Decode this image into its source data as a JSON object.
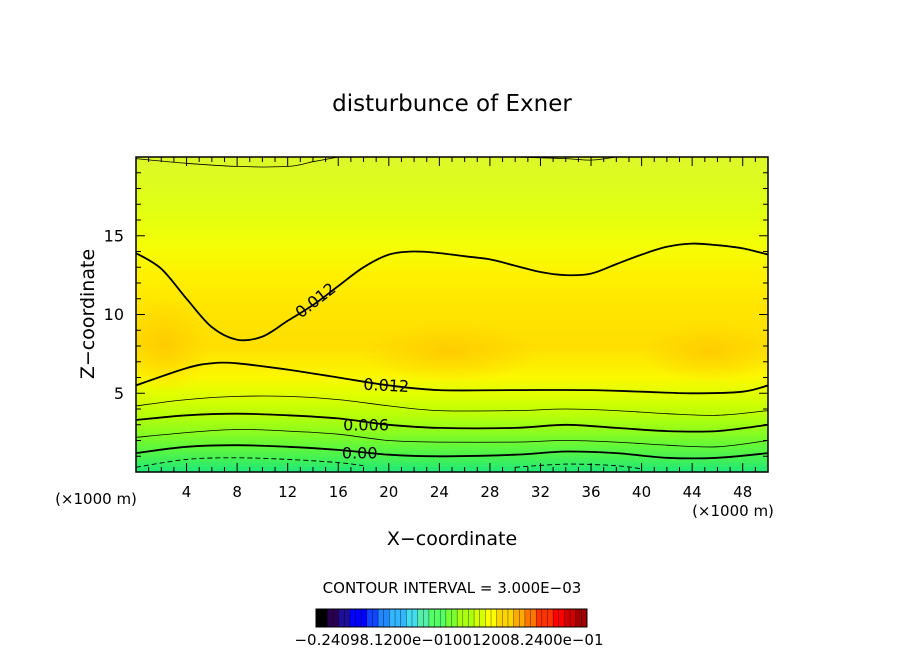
{
  "chart_data": {
    "type": "heatmap",
    "title": "disturbunce of Exner",
    "xlabel": "X−coordinate",
    "ylabel": "Z−coordinate",
    "x_unit": "(×1000 m)",
    "x_unit_right": "(×1000 m)",
    "xlim": [
      0,
      50
    ],
    "ylim": [
      0,
      20
    ],
    "x_ticks": [
      4,
      8,
      12,
      16,
      20,
      24,
      28,
      32,
      36,
      40,
      44,
      48
    ],
    "y_ticks": [
      5,
      10,
      15
    ],
    "contour_interval_text": "CONTOUR INTERVAL = 3.000E−03",
    "contour_labels": [
      {
        "text": "0.012",
        "x": 14.2,
        "y": 10.9,
        "angle": -38
      },
      {
        "text": "0.012",
        "x": 19.8,
        "y": 5.5,
        "angle": 3
      },
      {
        "text": "0.006",
        "x": 18.2,
        "y": 3.0,
        "angle": 0
      },
      {
        "text": "0.00",
        "x": 17.7,
        "y": 1.2,
        "angle": 0
      }
    ],
    "contours": [
      {
        "level": 0.012,
        "style": "thick",
        "points": [
          [
            0,
            13.9
          ],
          [
            2,
            12.9
          ],
          [
            4,
            11.0
          ],
          [
            6,
            9.2
          ],
          [
            8,
            8.4
          ],
          [
            10,
            8.6
          ],
          [
            12,
            9.6
          ],
          [
            14,
            10.6
          ],
          [
            16,
            11.8
          ],
          [
            18,
            13.0
          ],
          [
            20,
            13.8
          ],
          [
            22,
            14.0
          ],
          [
            24,
            13.9
          ],
          [
            26,
            13.7
          ],
          [
            28,
            13.5
          ],
          [
            30,
            13.1
          ],
          [
            32,
            12.7
          ],
          [
            34,
            12.5
          ],
          [
            36,
            12.6
          ],
          [
            38,
            13.2
          ],
          [
            40,
            13.8
          ],
          [
            42,
            14.3
          ],
          [
            44,
            14.5
          ],
          [
            46,
            14.4
          ],
          [
            48,
            14.2
          ],
          [
            50,
            13.8
          ]
        ]
      },
      {
        "level": 0.012,
        "style": "thick",
        "points": [
          [
            0,
            5.5
          ],
          [
            4,
            6.6
          ],
          [
            6,
            6.9
          ],
          [
            8,
            6.9
          ],
          [
            12,
            6.5
          ],
          [
            16,
            6.0
          ],
          [
            20,
            5.5
          ],
          [
            24,
            5.2
          ],
          [
            30,
            5.2
          ],
          [
            36,
            5.2
          ],
          [
            40,
            5.1
          ],
          [
            44,
            5.0
          ],
          [
            48,
            5.1
          ],
          [
            50,
            5.5
          ]
        ]
      },
      {
        "level": 0.009,
        "style": "thin",
        "points": [
          [
            0,
            4.2
          ],
          [
            4,
            4.6
          ],
          [
            8,
            4.8
          ],
          [
            12,
            4.8
          ],
          [
            16,
            4.6
          ],
          [
            20,
            4.2
          ],
          [
            24,
            3.9
          ],
          [
            30,
            3.9
          ],
          [
            34,
            4.0
          ],
          [
            38,
            3.9
          ],
          [
            42,
            3.7
          ],
          [
            46,
            3.6
          ],
          [
            50,
            3.9
          ]
        ]
      },
      {
        "level": 0.006,
        "style": "thick",
        "points": [
          [
            0,
            3.3
          ],
          [
            4,
            3.6
          ],
          [
            8,
            3.7
          ],
          [
            12,
            3.6
          ],
          [
            16,
            3.4
          ],
          [
            20,
            3.0
          ],
          [
            24,
            2.8
          ],
          [
            30,
            2.8
          ],
          [
            34,
            3.0
          ],
          [
            38,
            2.8
          ],
          [
            42,
            2.6
          ],
          [
            46,
            2.6
          ],
          [
            50,
            3.0
          ]
        ]
      },
      {
        "level": 0.003,
        "style": "thin",
        "points": [
          [
            0,
            2.2
          ],
          [
            4,
            2.5
          ],
          [
            8,
            2.7
          ],
          [
            12,
            2.6
          ],
          [
            16,
            2.4
          ],
          [
            20,
            2.0
          ],
          [
            24,
            1.9
          ],
          [
            30,
            1.9
          ],
          [
            34,
            2.0
          ],
          [
            38,
            1.9
          ],
          [
            42,
            1.7
          ],
          [
            46,
            1.6
          ],
          [
            50,
            2.0
          ]
        ]
      },
      {
        "level": 0.0,
        "style": "thick",
        "points": [
          [
            0,
            1.2
          ],
          [
            4,
            1.6
          ],
          [
            8,
            1.7
          ],
          [
            12,
            1.6
          ],
          [
            16,
            1.4
          ],
          [
            20,
            1.1
          ],
          [
            24,
            1.0
          ],
          [
            30,
            1.1
          ],
          [
            34,
            1.3
          ],
          [
            38,
            1.2
          ],
          [
            42,
            0.9
          ],
          [
            46,
            0.9
          ],
          [
            50,
            1.2
          ]
        ]
      },
      {
        "level": -0.003,
        "style": "dashed",
        "points": [
          [
            0,
            0.3
          ],
          [
            4,
            0.8
          ],
          [
            8,
            0.9
          ],
          [
            12,
            0.8
          ],
          [
            16,
            0.6
          ],
          [
            18,
            0.4
          ]
        ]
      },
      {
        "level": -0.003,
        "style": "dashed",
        "points": [
          [
            30,
            0.3
          ],
          [
            34,
            0.5
          ],
          [
            38,
            0.4
          ],
          [
            40,
            0.2
          ]
        ]
      },
      {
        "level": 0.009,
        "style": "thin",
        "points": [
          [
            0,
            19.9
          ],
          [
            4,
            19.6
          ],
          [
            8,
            19.4
          ],
          [
            12,
            19.4
          ],
          [
            14,
            19.7
          ],
          [
            16,
            20.0
          ]
        ]
      },
      {
        "level": 0.009,
        "style": "thin",
        "points": [
          [
            30,
            20.0
          ],
          [
            34,
            19.9
          ],
          [
            36,
            19.8
          ],
          [
            38,
            20.0
          ]
        ]
      }
    ],
    "colorbar": {
      "label_text": "−0.24098.1200e−010012008.2400e−01",
      "range": [
        -0.24,
        0.24
      ],
      "colors": [
        "#000000",
        "#2a0050",
        "#1e0f99",
        "#0000ff",
        "#1144ff",
        "#2288ff",
        "#33b5ff",
        "#44ddee",
        "#55eeaa",
        "#55ff66",
        "#77ff33",
        "#aaff11",
        "#d5ff00",
        "#ffff00",
        "#ffd500",
        "#ffaa00",
        "#ff7700",
        "#ff3300",
        "#ff0000",
        "#d00000",
        "#a00000"
      ]
    },
    "grid": false
  }
}
